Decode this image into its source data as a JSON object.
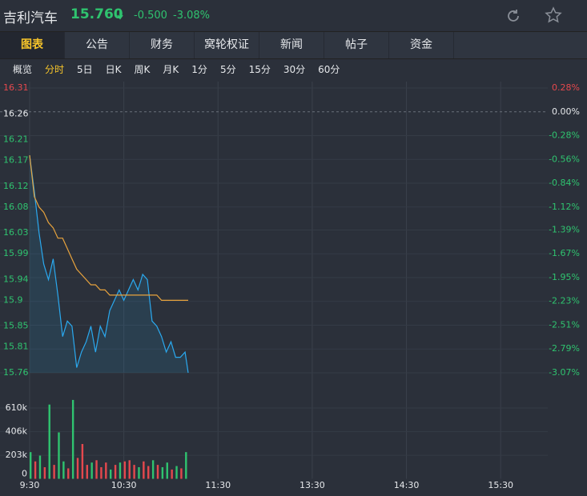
{
  "header": {
    "name": "吉利汽车",
    "price": "15.760",
    "change": "-0.500",
    "change_pct": "-3.08%"
  },
  "tabs": {
    "items": [
      "图表",
      "公告",
      "财务",
      "窝轮权证",
      "新闻",
      "帖子",
      "资金"
    ],
    "active": 0
  },
  "subtabs": {
    "items": [
      "概览",
      "分时",
      "5日",
      "日K",
      "周K",
      "月K",
      "1分",
      "5分",
      "15分",
      "30分",
      "60分"
    ],
    "active": 1
  },
  "up_color": "#e5484d",
  "down_color": "#2fc36f",
  "flat_color": "#e6e8eb",
  "chart_data": [
    {
      "type": "line",
      "xlim": [
        "9:30",
        "16:00"
      ],
      "xticks": [
        "9:30",
        "10:30",
        "11:30",
        "13:30",
        "14:30",
        "15:30"
      ],
      "x": [
        "9:30",
        "9:33",
        "9:36",
        "9:39",
        "9:42",
        "9:45",
        "9:48",
        "9:51",
        "9:54",
        "9:57",
        "10:00",
        "10:03",
        "10:06",
        "10:09",
        "10:12",
        "10:15",
        "10:18",
        "10:21",
        "10:24",
        "10:27",
        "10:30",
        "10:33",
        "10:36",
        "10:39",
        "10:42",
        "10:45",
        "10:48",
        "10:51",
        "10:54",
        "10:57",
        "11:00",
        "11:03",
        "11:06",
        "11:09",
        "11:11"
      ],
      "series": [
        {
          "name": "price",
          "color": "#2aa9ef",
          "values": [
            16.18,
            16.11,
            16.03,
            15.97,
            15.94,
            15.98,
            15.91,
            15.83,
            15.86,
            15.85,
            15.77,
            15.8,
            15.82,
            15.85,
            15.8,
            15.85,
            15.83,
            15.88,
            15.9,
            15.92,
            15.9,
            15.92,
            15.94,
            15.92,
            15.95,
            15.94,
            15.86,
            15.85,
            15.83,
            15.8,
            15.82,
            15.79,
            15.79,
            15.8,
            15.76
          ]
        },
        {
          "name": "average",
          "color": "#e8a33d",
          "values": [
            16.18,
            16.1,
            16.08,
            16.07,
            16.05,
            16.04,
            16.02,
            16.02,
            16.0,
            15.98,
            15.96,
            15.95,
            15.94,
            15.93,
            15.93,
            15.92,
            15.92,
            15.91,
            15.91,
            15.91,
            15.91,
            15.91,
            15.91,
            15.91,
            15.91,
            15.91,
            15.91,
            15.91,
            15.9,
            15.9,
            15.9,
            15.9,
            15.9,
            15.9,
            15.9
          ]
        }
      ],
      "ylim": [
        15.76,
        16.31
      ],
      "yticks": [
        16.31,
        16.26,
        16.21,
        16.17,
        16.12,
        16.08,
        16.03,
        15.99,
        15.94,
        15.9,
        15.85,
        15.81,
        15.76
      ],
      "y2lim": [
        -3.07,
        0.28
      ],
      "y2ticks": [
        {
          "value": 0.28,
          "label": "0.28%"
        },
        {
          "value": 0,
          "label": "0.00%"
        },
        {
          "value": -0.28,
          "label": "-0.28%"
        },
        {
          "value": -0.56,
          "label": "-0.56%"
        },
        {
          "value": -0.84,
          "label": "-0.84%"
        },
        {
          "value": -1.12,
          "label": "-1.12%"
        },
        {
          "value": -1.39,
          "label": "-1.39%"
        },
        {
          "value": -1.67,
          "label": "-1.67%"
        },
        {
          "value": -1.95,
          "label": "-1.95%"
        },
        {
          "value": -2.23,
          "label": "-2.23%"
        },
        {
          "value": -2.51,
          "label": "-2.51%"
        },
        {
          "value": -2.79,
          "label": "-2.79%"
        },
        {
          "value": -3.07,
          "label": "-3.07%"
        }
      ],
      "grid": true
    },
    {
      "type": "bar",
      "x": [
        "9:30",
        "9:33",
        "9:36",
        "9:39",
        "9:42",
        "9:45",
        "9:48",
        "9:51",
        "9:54",
        "9:57",
        "10:00",
        "10:03",
        "10:06",
        "10:09",
        "10:12",
        "10:15",
        "10:18",
        "10:21",
        "10:24",
        "10:27",
        "10:30",
        "10:33",
        "10:36",
        "10:39",
        "10:42",
        "10:45",
        "10:48",
        "10:51",
        "10:54",
        "10:57",
        "11:00",
        "11:03",
        "11:06",
        "11:09"
      ],
      "values": [
        230000,
        150000,
        200000,
        100000,
        640000,
        120000,
        400000,
        150000,
        90000,
        680000,
        180000,
        300000,
        120000,
        140000,
        160000,
        100000,
        140000,
        80000,
        120000,
        140000,
        150000,
        160000,
        120000,
        100000,
        150000,
        110000,
        160000,
        120000,
        100000,
        140000,
        80000,
        110000,
        90000,
        230000
      ],
      "colors": [
        "#2fc36f",
        "#e5484d",
        "#2fc36f",
        "#e5484d",
        "#2fc36f",
        "#e5484d",
        "#2fc36f",
        "#2fc36f",
        "#e5484d",
        "#2fc36f",
        "#e5484d",
        "#e5484d",
        "#e5484d",
        "#2fc36f",
        "#e5484d",
        "#e5484d",
        "#e5484d",
        "#2fc36f",
        "#e5484d",
        "#2fc36f",
        "#e5484d",
        "#e5484d",
        "#e5484d",
        "#2fc36f",
        "#e5484d",
        "#e5484d",
        "#2fc36f",
        "#e5484d",
        "#2fc36f",
        "#2fc36f",
        "#e5484d",
        "#2fc36f",
        "#e5484d",
        "#2fc36f"
      ],
      "ylim": [
        0,
        700000
      ],
      "yticks": [
        {
          "value": 610000,
          "label": "610k"
        },
        {
          "value": 406000,
          "label": "406k"
        },
        {
          "value": 203000,
          "label": "203k"
        },
        0
      ]
    }
  ]
}
